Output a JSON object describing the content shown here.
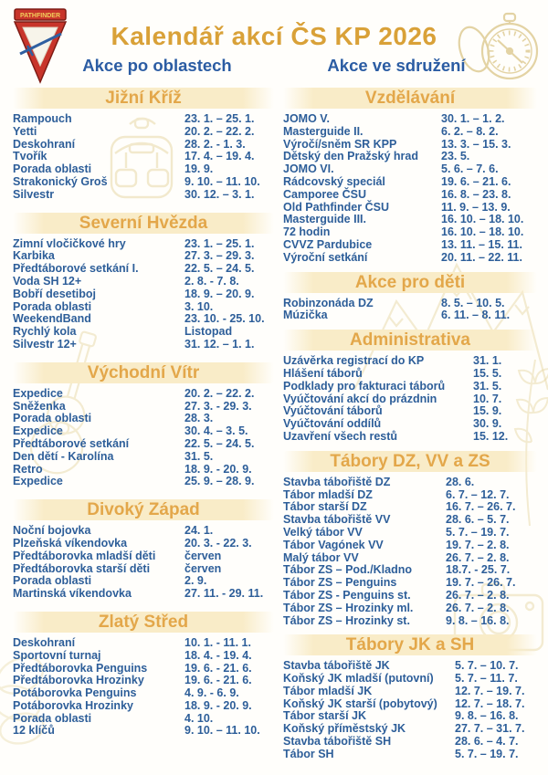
{
  "header": {
    "title": "Kalendář akcí ČS KP 2026",
    "logo_text": "PATHFINDER",
    "left_column_title": "Akce po oblastech",
    "right_column_title": "Akce ve sdružení"
  },
  "colors": {
    "title_gold": "#D9A138",
    "band_gold_text": "#E3A74A",
    "band_background": "#F9ECC8",
    "body_blue": "#2D5E99",
    "column_header_blue": "#2B5CA3",
    "logo_red": "#C8352B",
    "watermark_gold": "#E8D9A8"
  },
  "icons": {
    "logo": "pathfinder-triangle-logo",
    "top_right": "compass-icon",
    "watermarks": [
      "backpack-icon",
      "guitar-icon",
      "mountains-icon",
      "camera-icon",
      "rope-knot-icon",
      "wheat-icon"
    ]
  },
  "left_sections": [
    {
      "title": "Jižní Kříž",
      "events": [
        {
          "name": "Rampouch",
          "date": "23. 1. – 25. 1."
        },
        {
          "name": "Yetti",
          "date": "20. 2. – 22. 2."
        },
        {
          "name": "Deskohraní",
          "date": "28. 2. - 1. 3."
        },
        {
          "name": "Tvořík",
          "date": "17. 4. – 19. 4."
        },
        {
          "name": "Porada oblasti",
          "date": "19. 9."
        },
        {
          "name": "Strakonický Groš",
          "date": "9. 10. – 11. 10."
        },
        {
          "name": "Silvestr",
          "date": "30. 12. – 3. 1."
        }
      ]
    },
    {
      "title": "Severní Hvězda",
      "events": [
        {
          "name": "Zimní vločičkové hry",
          "date": "23. 1. – 25. 1."
        },
        {
          "name": "Karbika",
          "date": "27. 3. – 29. 3."
        },
        {
          "name": "Předtáborové setkání I.",
          "date": "22. 5. – 24. 5."
        },
        {
          "name": "Voda SH 12+",
          "date": "2. 8. - 7. 8."
        },
        {
          "name": "Bobří desetiboj",
          "date": "18. 9. – 20. 9."
        },
        {
          "name": "Porada oblasti",
          "date": "3. 10."
        },
        {
          "name": "WeekendBand",
          "date": "23. 10. - 25. 10."
        },
        {
          "name": "Rychlý kola",
          "date": "Listopad"
        },
        {
          "name": "Silvestr 12+",
          "date": "31. 12. – 1. 1."
        }
      ]
    },
    {
      "title": "Východní Vítr",
      "events": [
        {
          "name": "Expedice",
          "date": "20. 2. – 22. 2."
        },
        {
          "name": "Sněženka",
          "date": "27. 3. - 29. 3."
        },
        {
          "name": "Porada oblasti",
          "date": "28. 3."
        },
        {
          "name": "Expedice",
          "date": "30. 4. – 3. 5."
        },
        {
          "name": "Předtáborové setkání",
          "date": "22. 5. – 24. 5."
        },
        {
          "name": "Den dětí - Karolína",
          "date": "31. 5."
        },
        {
          "name": "Retro",
          "date": "18. 9. - 20. 9."
        },
        {
          "name": "Expedice",
          "date": "25. 9. – 28. 9."
        }
      ]
    },
    {
      "title": "Divoký Západ",
      "events": [
        {
          "name": "Noční bojovka",
          "date": "24. 1."
        },
        {
          "name": "Plzeňská víkendovka",
          "date": "20. 3. - 22. 3."
        },
        {
          "name": "Předtáborovka mladší děti",
          "date": "červen"
        },
        {
          "name": "Předtáborovka starší děti",
          "date": "červen"
        },
        {
          "name": "Porada oblasti",
          "date": "2. 9."
        },
        {
          "name": "Martinská víkendovka",
          "date": "27. 11. - 29. 11."
        }
      ]
    },
    {
      "title": "Zlatý Střed",
      "events": [
        {
          "name": "Deskohraní",
          "date": "10. 1. - 11. 1."
        },
        {
          "name": "Sportovní turnaj",
          "date": "18. 4. - 19. 4."
        },
        {
          "name": "Předtáborovka Penguins",
          "date": "19. 6. - 21. 6."
        },
        {
          "name": "Předtáborovka Hrozinky",
          "date": "19. 6. - 21. 6."
        },
        {
          "name": "Potáborovka Penguins",
          "date": "4. 9. - 6. 9."
        },
        {
          "name": "Potáborovka Hrozinky",
          "date": "18. 9. - 20. 9."
        },
        {
          "name": "Porada oblasti",
          "date": "4. 10."
        },
        {
          "name": "12 klíčů",
          "date": "9. 10. – 11. 10."
        }
      ]
    }
  ],
  "right_sections": [
    {
      "title": "Vzdělávání",
      "events": [
        {
          "name": "JOMO V.",
          "date": "30. 1. – 1. 2."
        },
        {
          "name": "Masterguide II.",
          "date": "6. 2. – 8. 2."
        },
        {
          "name": "Výročí/sněm SR KPP",
          "date": "13. 3. – 15. 3."
        },
        {
          "name": "Dětský den Pražský hrad",
          "date": "23. 5."
        },
        {
          "name": "JOMO VI.",
          "date": "5. 6. – 7. 6."
        },
        {
          "name": "Rádcovský speciál",
          "date": "19. 6. – 21. 6."
        },
        {
          "name": "Camporee ČSU",
          "date": "16. 8. – 23. 8."
        },
        {
          "name": "Old Pathfinder ČSU",
          "date": "11. 9. – 13. 9."
        },
        {
          "name": "Masterguide III.",
          "date": "16. 10. – 18. 10."
        },
        {
          "name": "72 hodin",
          "date": "16. 10. – 18. 10."
        },
        {
          "name": "CVVZ Pardubice",
          "date": "13. 11. – 15. 11."
        },
        {
          "name": "Výroční setkání",
          "date": "20. 11. – 22. 11."
        }
      ]
    },
    {
      "title": "Akce pro děti",
      "events": [
        {
          "name": "Robinzonáda DZ",
          "date": "8. 5. – 10. 5."
        },
        {
          "name": "Múzička",
          "date": "6. 11. – 8. 11."
        }
      ]
    },
    {
      "title": "Administrativa",
      "events": [
        {
          "name": "Uzávěrka registrací do KP",
          "date": "31. 1."
        },
        {
          "name": "Hlášení táborů",
          "date": "15. 5."
        },
        {
          "name": "Podklady pro fakturaci táborů",
          "date": "31. 5."
        },
        {
          "name": "Vyúčtování akcí do prázdnin",
          "date": "10. 7."
        },
        {
          "name": "Vyúčtování táborů",
          "date": "15. 9."
        },
        {
          "name": "Vyúčtování oddílů",
          "date": "30. 9."
        },
        {
          "name": "Uzavření všech restů",
          "date": "15. 12."
        }
      ]
    },
    {
      "title": "Tábory DZ, VV a ZS",
      "events": [
        {
          "name": "Stavba tábořiště DZ",
          "date": "28. 6."
        },
        {
          "name": "Tábor mladší DZ",
          "date": "6. 7. – 12. 7."
        },
        {
          "name": "Tábor starší DZ",
          "date": "16. 7. – 26. 7."
        },
        {
          "name": "Stavba tábořiště VV",
          "date": "28. 6. – 5. 7."
        },
        {
          "name": "Velký tábor VV",
          "date": "5. 7. – 19. 7."
        },
        {
          "name": "Tábor Vagónek VV",
          "date": "19. 7. – 2. 8."
        },
        {
          "name": "Malý tábor VV",
          "date": "26. 7. – 2. 8."
        },
        {
          "name": "Tábor ZS – Pod./Kladno",
          "date": "18.7. - 25. 7."
        },
        {
          "name": "Tábor ZS – Penguins",
          "date": "19. 7. – 26. 7."
        },
        {
          "name": "Tábor ZS - Penguins st.",
          "date": "26. 7. – 2. 8."
        },
        {
          "name": "Tábor ZS – Hrozinky ml.",
          "date": "26. 7. – 2. 8."
        },
        {
          "name": "Tábor ZS – Hrozinky st.",
          "date": "9. 8. – 16. 8."
        }
      ]
    },
    {
      "title": "Tábory JK a SH",
      "events": [
        {
          "name": "Stavba tábořiště JK",
          "date": "5. 7. – 10. 7."
        },
        {
          "name": "Koňský JK mladší (putovní)",
          "date": "5. 7. – 11. 7."
        },
        {
          "name": "Tábor mladší JK",
          "date": "12. 7. – 19. 7."
        },
        {
          "name": "Koňský JK starší (pobytový)",
          "date": "12. 7. – 18. 7."
        },
        {
          "name": "Tábor starší JK",
          "date": "9. 8. – 16. 8."
        },
        {
          "name": "Koňský příměstský JK",
          "date": "27. 7. – 31. 7."
        },
        {
          "name": "Stavba tábořiště SH",
          "date": "28. 6. – 4. 7."
        },
        {
          "name": "Tábor SH",
          "date": "5. 7. – 19. 7."
        }
      ]
    }
  ]
}
